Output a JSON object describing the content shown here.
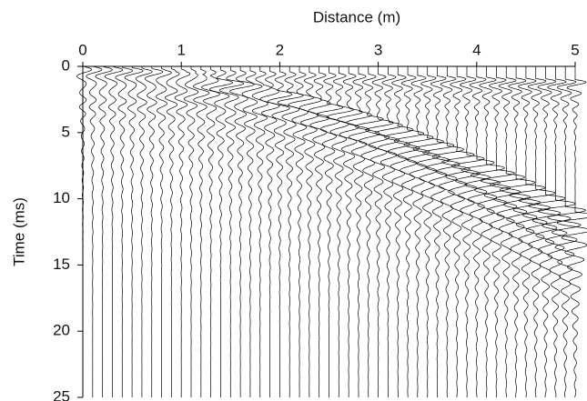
{
  "chart_data": {
    "type": "wiggle",
    "title": "Distance (m)",
    "y_label": "Time (ms)",
    "x": [
      0,
      0.1,
      0.2,
      0.3,
      0.4,
      0.5,
      0.6,
      0.7,
      0.8,
      0.9,
      1,
      1.1,
      1.2,
      1.3,
      1.4,
      1.5,
      1.6,
      1.7,
      1.8,
      1.9,
      2,
      2.1,
      2.2,
      2.3,
      2.4,
      2.5,
      2.6,
      2.7,
      2.8,
      2.9,
      3,
      3.1,
      3.2,
      3.3,
      3.4,
      3.5,
      3.6,
      3.7,
      3.8,
      3.9,
      4,
      4.1,
      4.2,
      4.3,
      4.4,
      4.5,
      4.6,
      4.7,
      4.8,
      4.9,
      5
    ],
    "series": [
      {
        "color": "#000000",
        "values": [
          0,
          0.02,
          0.04,
          0.06,
          0.08,
          0.1,
          0.12,
          0.14,
          0.16,
          0.18,
          0.2,
          0.22,
          0.24,
          0.26,
          0.28,
          0.3,
          0.32,
          0.34,
          0.36,
          0.38,
          0.4,
          0.42,
          0.44,
          0.46,
          0.48,
          0.5,
          0.52,
          0.54,
          0.56,
          0.58,
          0.6,
          0.62,
          0.64,
          0.66,
          0.68,
          0.7,
          0.72,
          0.74,
          0.76,
          0.78,
          0.8,
          0.82,
          0.84,
          0.86,
          0.88,
          0.9,
          0.92,
          0.94,
          0.96,
          0.98,
          1
        ]
      },
      {
        "color": "#000000",
        "values": [
          0,
          0,
          0,
          0,
          0.1,
          0.1,
          0.2,
          0.2,
          0.3,
          0.4,
          0.4,
          0.5,
          0.6,
          0.7,
          0.9,
          1.0,
          1.1,
          1.3,
          1.4,
          1.6,
          1.8,
          1.9,
          2.1,
          2.3,
          2.5,
          2.8,
          3.0,
          3.2,
          3.4,
          3.7,
          4.0,
          4.2,
          4.5,
          4.8,
          5.1,
          5.4,
          5.7,
          6.0,
          6.4,
          6.7,
          7.0,
          7.4,
          7.8,
          8.1,
          8.5,
          8.9,
          9.3,
          9.7,
          10.1,
          10.6,
          11.0
        ]
      }
    ],
    "xlim": [
      0,
      5
    ],
    "xticks": [
      0,
      1,
      2,
      3,
      4,
      5
    ],
    "ylim": [
      0,
      25
    ],
    "yticks": [
      0,
      5,
      10,
      15,
      20,
      25
    ],
    "y_inverted": true
  }
}
